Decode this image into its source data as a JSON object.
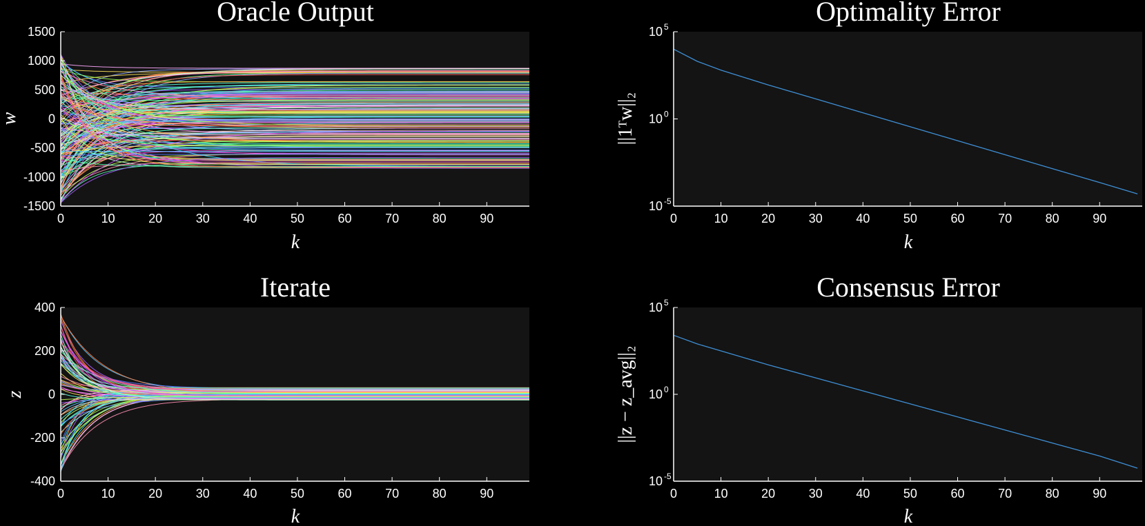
{
  "colors": {
    "background": "#000000",
    "plot_area": "#141414",
    "text": "#ffffff",
    "error_line": "#3e8fd6"
  },
  "chart_data": [
    {
      "id": "oracle",
      "type": "line",
      "title": "Oracle Output",
      "xlabel": "k",
      "ylabel": "w",
      "xlim": [
        0,
        99
      ],
      "ylim": [
        -1500,
        1500
      ],
      "xticks": [
        0,
        10,
        20,
        30,
        40,
        50,
        60,
        70,
        80,
        90
      ],
      "yticks": [
        -1500,
        -1000,
        -500,
        0,
        500,
        1000,
        1500
      ],
      "ytick_labels": [
        "-1500",
        "-1000",
        "-500",
        "0",
        "500",
        "1000",
        "1500"
      ],
      "series_description": "many colored trajectories",
      "start_range": [
        -1450,
        1170
      ],
      "final_values": [
        860,
        840,
        820,
        800,
        780,
        640,
        600,
        560,
        520,
        480,
        450,
        430,
        410,
        390,
        360,
        330,
        300,
        270,
        250,
        230,
        210,
        190,
        170,
        150,
        130,
        110,
        90,
        70,
        50,
        30,
        10,
        -10,
        -30,
        -50,
        -80,
        -110,
        -140,
        -170,
        -200,
        -230,
        -260,
        -290,
        -320,
        -350,
        -380,
        -410,
        -440,
        -470,
        -500,
        -540,
        -570,
        -600,
        -680,
        -720,
        -760,
        -790,
        -820,
        -840
      ],
      "decay_rate": 0.12
    },
    {
      "id": "iterate",
      "type": "line",
      "title": "Iterate",
      "xlabel": "k",
      "ylabel": "z",
      "xlim": [
        0,
        99
      ],
      "ylim": [
        -400,
        400
      ],
      "xticks": [
        0,
        10,
        20,
        30,
        40,
        50,
        60,
        70,
        80,
        90
      ],
      "yticks": [
        -400,
        -200,
        0,
        200,
        400
      ],
      "ytick_labels": [
        "-400",
        "-200",
        "0",
        "200",
        "400"
      ],
      "start_range": [
        -360,
        380
      ],
      "final_values": [
        30,
        27,
        24,
        21,
        18,
        16,
        14,
        12,
        10,
        8,
        6,
        4,
        2,
        0,
        -2,
        -4,
        -6,
        -8,
        -10,
        -12,
        -14,
        -16,
        -18,
        -20,
        -22,
        -25
      ],
      "decay_rate": 0.18
    },
    {
      "id": "optimality",
      "type": "line",
      "title": "Optimality Error",
      "xlabel": "k",
      "ylabel": "||1ᵀw||₂",
      "xlim": [
        0,
        99
      ],
      "yscale": "log",
      "ylim_exp": [
        -5,
        5
      ],
      "xticks": [
        0,
        10,
        20,
        30,
        40,
        50,
        60,
        70,
        80,
        90
      ],
      "ytick_exps": [
        -5,
        0,
        5
      ],
      "ytick_base": "10",
      "series": [
        {
          "x": [
            0,
            5,
            10,
            20,
            30,
            40,
            50,
            60,
            70,
            80,
            90,
            98
          ],
          "log10_y": [
            4.0,
            3.3,
            2.8,
            1.95,
            1.15,
            0.35,
            -0.45,
            -1.25,
            -2.05,
            -2.85,
            -3.65,
            -4.3
          ]
        }
      ]
    },
    {
      "id": "consensus",
      "type": "line",
      "title": "Consensus Error",
      "xlabel": "k",
      "ylabel": "||z − z_avg||₂",
      "xlim": [
        0,
        99
      ],
      "yscale": "log",
      "ylim_exp": [
        -5,
        5
      ],
      "xticks": [
        0,
        10,
        20,
        30,
        40,
        50,
        60,
        70,
        80,
        90
      ],
      "ytick_exps": [
        -5,
        0,
        5
      ],
      "ytick_base": "10",
      "series": [
        {
          "x": [
            0,
            5,
            10,
            20,
            30,
            40,
            50,
            60,
            70,
            80,
            90,
            98
          ],
          "log10_y": [
            3.4,
            2.9,
            2.5,
            1.7,
            0.95,
            0.2,
            -0.55,
            -1.3,
            -2.05,
            -2.8,
            -3.55,
            -4.25
          ]
        }
      ]
    }
  ]
}
